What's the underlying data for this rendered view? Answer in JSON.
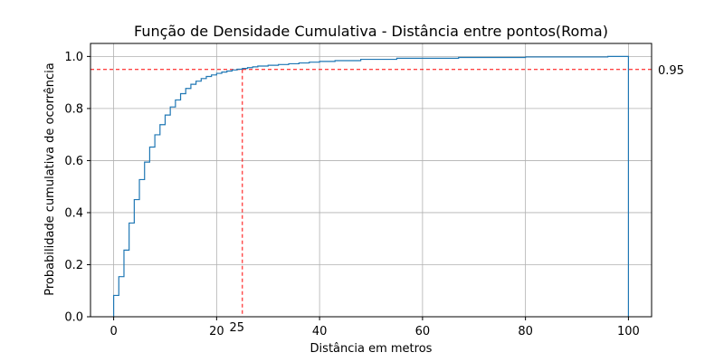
{
  "chart_data": {
    "type": "line",
    "step": true,
    "title": "Função de Densidade Cumulativa - Distância entre pontos(Roma)",
    "xlabel": "Distância em metros",
    "ylabel": "Probabilidade cumulativa de ocorrência",
    "xlim": [
      -4.5,
      104.5
    ],
    "ylim": [
      0,
      1.05
    ],
    "xticks": [
      0,
      20,
      40,
      60,
      80,
      100
    ],
    "yticks": [
      0.0,
      0.2,
      0.4,
      0.6,
      0.8,
      1.0
    ],
    "xtick_labels": [
      "0",
      "20",
      "40",
      "60",
      "80",
      "100"
    ],
    "ytick_labels": [
      "0.0",
      "0.2",
      "0.4",
      "0.6",
      "0.8",
      "1.0"
    ],
    "grid": true,
    "line_color": "#1f77b4",
    "reference_color": "#ff0000",
    "series": [
      {
        "x": [
          0,
          1,
          2,
          3,
          4,
          5,
          6,
          7,
          8,
          9,
          10,
          11,
          12,
          13,
          14,
          15,
          16,
          17,
          18,
          19,
          20,
          21,
          22,
          23,
          24,
          25,
          26,
          27,
          28,
          30,
          32,
          34,
          36,
          38,
          40,
          43,
          48,
          55,
          67,
          80,
          96,
          100
        ],
        "y": [
          0.082,
          0.154,
          0.256,
          0.36,
          0.45,
          0.527,
          0.594,
          0.652,
          0.699,
          0.738,
          0.775,
          0.806,
          0.833,
          0.857,
          0.877,
          0.893,
          0.905,
          0.915,
          0.923,
          0.929,
          0.935,
          0.94,
          0.944,
          0.948,
          0.951,
          0.954,
          0.957,
          0.96,
          0.963,
          0.966,
          0.969,
          0.972,
          0.975,
          0.978,
          0.981,
          0.984,
          0.989,
          0.993,
          0.996,
          0.998,
          1.0,
          0.0
        ]
      }
    ],
    "reference_lines": {
      "horizontal": {
        "y": 0.95,
        "label": "0.95"
      },
      "vertical": {
        "x": 25,
        "label": "25"
      }
    }
  }
}
